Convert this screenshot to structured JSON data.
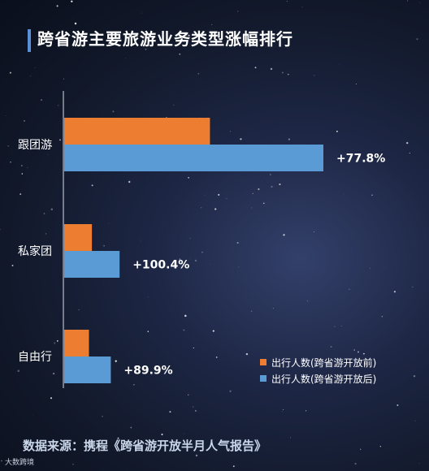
{
  "title": "跨省游主要旅游业务类型涨幅排行",
  "source": "数据来源：携程《跨省游开放半月人气报告》",
  "watermark": "大数跨境",
  "colors": {
    "before": "#ed7d31",
    "after": "#5b9bd5"
  },
  "legend": [
    {
      "label": "出行人数(跨省游开放前)",
      "color": "#ed7d31"
    },
    {
      "label": "出行人数(跨省游开放后)",
      "color": "#5b9bd5"
    }
  ],
  "chart_data": {
    "type": "bar",
    "orientation": "horizontal",
    "categories": [
      "跟团游",
      "私家团",
      "自由行"
    ],
    "series": [
      {
        "name": "出行人数(跨省游开放前)",
        "values": [
          100,
          19,
          17
        ]
      },
      {
        "name": "出行人数(跨省游开放后)",
        "values": [
          177.8,
          38,
          32
        ]
      }
    ],
    "data_labels": [
      "+77.8%",
      "+100.4%",
      "+89.9%"
    ],
    "xlim": [
      0,
      180
    ],
    "grid": false,
    "legend_position": "bottom-right"
  }
}
